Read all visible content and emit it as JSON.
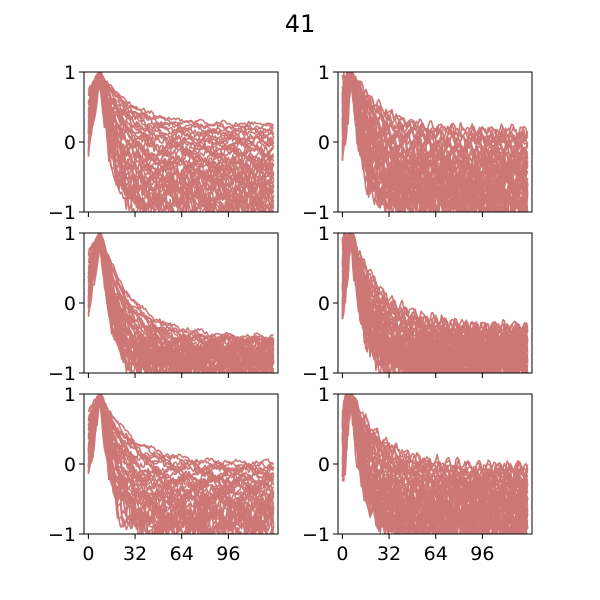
{
  "chart_data": {
    "type": "line",
    "title": "41",
    "layout": {
      "rows": 3,
      "cols": 2,
      "sharex": true,
      "sharey": true
    },
    "line_color": "#cd7777",
    "lines_per_panel": 41,
    "x_range": [
      0,
      127
    ],
    "xlim": [
      -3,
      130
    ],
    "ylim": [
      -1,
      1
    ],
    "xticks": [
      0,
      32,
      64,
      96
    ],
    "xtick_labels": [
      "0",
      "32",
      "64",
      "96"
    ],
    "yticks": [
      -1,
      0,
      1
    ],
    "ytick_labels": [
      "−1",
      "0",
      "1"
    ],
    "grid": false,
    "legend": "none",
    "panels": [
      {
        "row": 0,
        "col": 0,
        "peak": [
          8,
          1.0
        ],
        "upper_tail": 0.25,
        "lower_tail": -0.98,
        "oscillation": "small"
      },
      {
        "row": 0,
        "col": 1,
        "peak": [
          6,
          1.0
        ],
        "upper_tail": 0.15,
        "lower_tail": -0.98,
        "oscillation": "noisy"
      },
      {
        "row": 1,
        "col": 0,
        "peak": [
          8,
          1.0
        ],
        "upper_tail": -0.5,
        "lower_tail": -0.98,
        "oscillation": "wavy"
      },
      {
        "row": 1,
        "col": 1,
        "peak": [
          6,
          1.0
        ],
        "upper_tail": -0.35,
        "lower_tail": -0.98,
        "oscillation": "noisy"
      },
      {
        "row": 2,
        "col": 0,
        "peak": [
          8,
          1.0
        ],
        "upper_tail": 0.0,
        "lower_tail": -0.98,
        "oscillation": "wavy"
      },
      {
        "row": 2,
        "col": 1,
        "peak": [
          6,
          1.0
        ],
        "upper_tail": -0.05,
        "lower_tail": -0.98,
        "oscillation": "noisy"
      }
    ]
  }
}
